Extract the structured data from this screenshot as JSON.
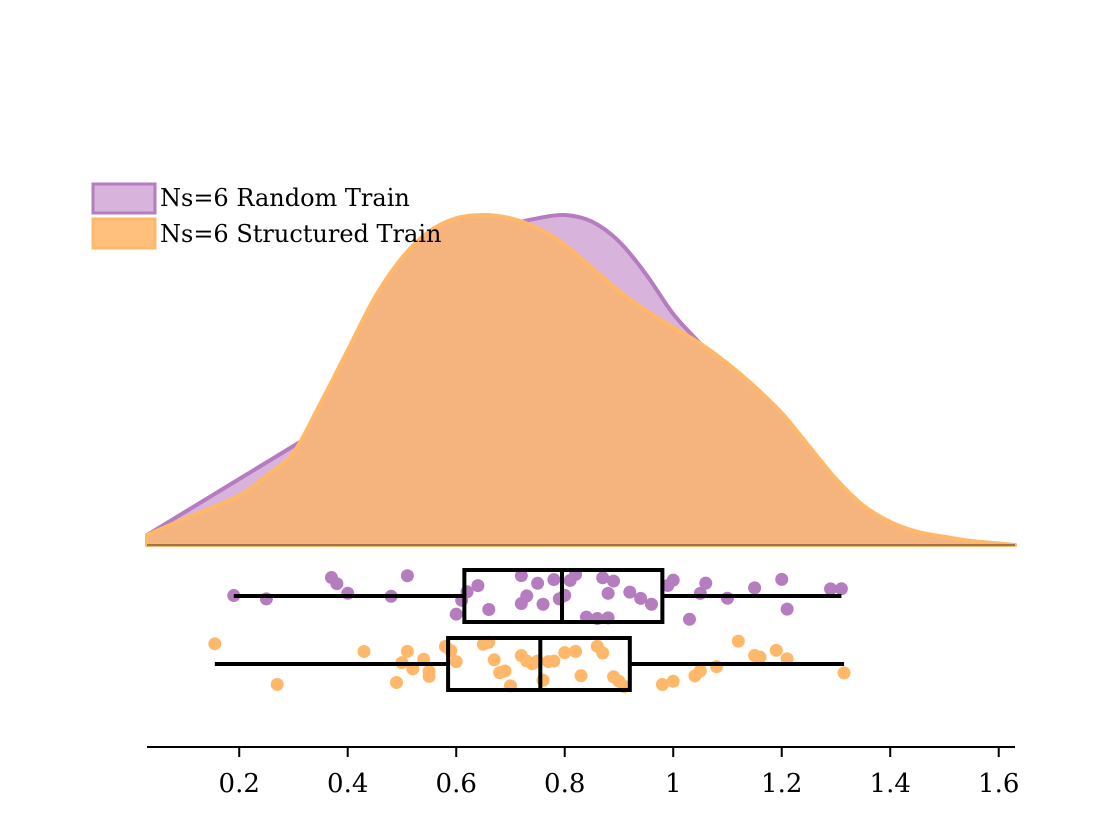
{
  "chart_data": {
    "type": "raincloud",
    "x_ticks": [
      0.2,
      0.4,
      0.6,
      0.8,
      1,
      1.2,
      1.4,
      1.6
    ],
    "x_tick_labels": [
      "0.2",
      "0.4",
      "0.6",
      "0.8",
      "1",
      "1.2",
      "1.4",
      "1.6"
    ],
    "xlim": [
      0.03,
      1.63
    ],
    "legend_position": "top-left",
    "grid": false,
    "series": [
      {
        "name": "Ns=6 Random Train",
        "fill": "#d8b4dc",
        "stroke": "#b57cc0",
        "point_color": "#b57cc0",
        "density": [
          [
            0.03,
            0.03
          ],
          [
            0.1,
            0.1
          ],
          [
            0.2,
            0.2
          ],
          [
            0.3,
            0.3
          ],
          [
            0.35,
            0.35
          ],
          [
            0.4,
            0.43
          ],
          [
            0.45,
            0.55
          ],
          [
            0.5,
            0.67
          ],
          [
            0.55,
            0.78
          ],
          [
            0.6,
            0.87
          ],
          [
            0.65,
            0.93
          ],
          [
            0.7,
            0.97
          ],
          [
            0.75,
            0.99
          ],
          [
            0.8,
            1.0
          ],
          [
            0.85,
            0.98
          ],
          [
            0.9,
            0.92
          ],
          [
            0.95,
            0.82
          ],
          [
            1.0,
            0.7
          ],
          [
            1.05,
            0.61
          ],
          [
            1.1,
            0.52
          ],
          [
            1.15,
            0.43
          ],
          [
            1.2,
            0.34
          ],
          [
            1.25,
            0.25
          ],
          [
            1.3,
            0.17
          ],
          [
            1.35,
            0.1
          ],
          [
            1.4,
            0.06
          ],
          [
            1.45,
            0.03
          ],
          [
            1.5,
            0.015
          ],
          [
            1.55,
            0.005
          ],
          [
            1.63,
            0.0
          ]
        ],
        "box": {
          "whisker_low": 0.19,
          "q1": 0.615,
          "median": 0.795,
          "q3": 0.98,
          "whisker_high": 1.31
        },
        "points": [
          0.19,
          0.25,
          0.37,
          0.38,
          0.4,
          0.48,
          0.51,
          0.6,
          0.61,
          0.62,
          0.64,
          0.66,
          0.72,
          0.72,
          0.73,
          0.75,
          0.76,
          0.78,
          0.79,
          0.8,
          0.81,
          0.82,
          0.84,
          0.86,
          0.87,
          0.88,
          0.88,
          0.89,
          0.92,
          0.94,
          0.96,
          0.99,
          1.0,
          1.03,
          1.05,
          1.06,
          1.1,
          1.15,
          1.2,
          1.21,
          1.29,
          1.31
        ]
      },
      {
        "name": "Ns=6 Structured Train",
        "fill": "#f5b47e",
        "stroke": "#ffb869",
        "point_color": "#ffb869",
        "density": [
          [
            0.03,
            0.03
          ],
          [
            0.1,
            0.08
          ],
          [
            0.2,
            0.15
          ],
          [
            0.25,
            0.21
          ],
          [
            0.3,
            0.28
          ],
          [
            0.35,
            0.43
          ],
          [
            0.4,
            0.59
          ],
          [
            0.45,
            0.75
          ],
          [
            0.5,
            0.87
          ],
          [
            0.55,
            0.95
          ],
          [
            0.6,
            0.99
          ],
          [
            0.65,
            1.0
          ],
          [
            0.7,
            0.99
          ],
          [
            0.75,
            0.96
          ],
          [
            0.8,
            0.91
          ],
          [
            0.85,
            0.84
          ],
          [
            0.9,
            0.77
          ],
          [
            0.95,
            0.71
          ],
          [
            1.0,
            0.66
          ],
          [
            1.05,
            0.61
          ],
          [
            1.1,
            0.55
          ],
          [
            1.15,
            0.48
          ],
          [
            1.2,
            0.4
          ],
          [
            1.25,
            0.3
          ],
          [
            1.3,
            0.2
          ],
          [
            1.35,
            0.12
          ],
          [
            1.4,
            0.07
          ],
          [
            1.45,
            0.04
          ],
          [
            1.5,
            0.025
          ],
          [
            1.55,
            0.012
          ],
          [
            1.63,
            0.0
          ]
        ],
        "box": {
          "whisker_low": 0.155,
          "q1": 0.585,
          "median": 0.755,
          "q3": 0.92,
          "whisker_high": 1.315
        },
        "points": [
          0.155,
          0.27,
          0.43,
          0.49,
          0.5,
          0.51,
          0.52,
          0.54,
          0.55,
          0.55,
          0.58,
          0.59,
          0.6,
          0.65,
          0.66,
          0.67,
          0.68,
          0.69,
          0.7,
          0.72,
          0.73,
          0.74,
          0.75,
          0.76,
          0.77,
          0.78,
          0.8,
          0.82,
          0.83,
          0.86,
          0.87,
          0.89,
          0.9,
          0.91,
          0.98,
          1.0,
          1.04,
          1.05,
          1.08,
          1.12,
          1.15,
          1.16,
          1.19,
          1.21,
          1.315
        ]
      }
    ]
  }
}
